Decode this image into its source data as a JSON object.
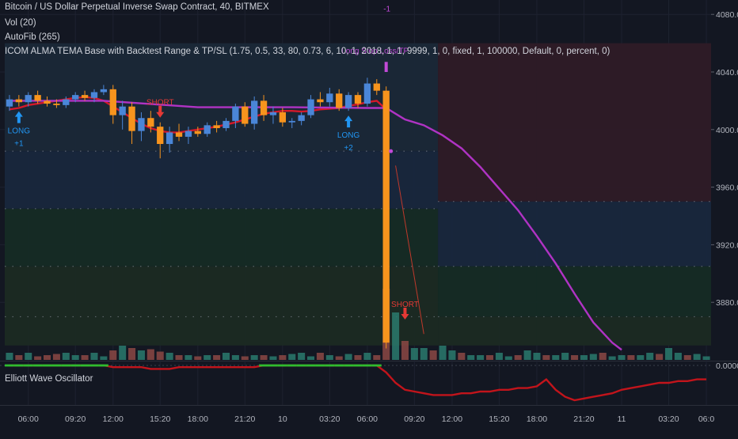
{
  "header": {
    "symbol_title": "Bitcoin / US Dollar Perpetual Inverse Swap Contract, 40, BITMEX",
    "vol_label": "Vol (20)",
    "autofib_label": "AutoFib (265)",
    "strategy_label": "ICOM ALMA TEMA Base with Backtest Range & TP/SL (1.75, 0.5, 33, 80, 0.73, 6, 10, 1, 2018, 1, 1, 9999, 1, 0, fixed, 1, 100000, Default, 0, percent, 0)"
  },
  "oscillator": {
    "title": "Elliott Wave Oscillator",
    "zero_label": "0.0000"
  },
  "colors": {
    "background": "#131722",
    "bull": "#4a86d8",
    "bear": "#f7941d",
    "ma_red": "#d3192a",
    "ma_magenta": "#b033c4",
    "signal_long": "#2196f3",
    "signal_short": "#e53935",
    "tp_label": "#c24ad8",
    "osc_line": "#c2141b",
    "osc_green": "#2ebd2e"
  },
  "chart_data": {
    "type": "candlestick",
    "title": "Bitcoin / US Dollar Perpetual Inverse Swap Contract, 40, BITMEX",
    "y_axis": {
      "range": [
        3840,
        4090
      ],
      "tick_labels": [
        "4080.0",
        "4040.0",
        "4000.0",
        "3960.0",
        "3920.0",
        "3880.0"
      ],
      "ticks": [
        4080,
        4040,
        4000,
        3960,
        3920,
        3880
      ]
    },
    "x_axis": {
      "tick_labels": [
        "06:00",
        "09:20",
        "12:00",
        "15:20",
        "18:00",
        "21:20",
        "10",
        "03:20",
        "06:00",
        "09:20",
        "12:00",
        "15:20",
        "18:00",
        "21:20",
        "11",
        "03:20",
        "06:0"
      ],
      "tick_bars": [
        2,
        7,
        11,
        16,
        20,
        25,
        29,
        34,
        38,
        43,
        47,
        52,
        56,
        61,
        65,
        70,
        74
      ]
    },
    "candles": [
      {
        "o": 4016,
        "h": 4024,
        "l": 4013,
        "c": 4021
      },
      {
        "o": 4021,
        "h": 4024,
        "l": 4016,
        "c": 4019
      },
      {
        "o": 4019,
        "h": 4026,
        "l": 4016,
        "c": 4024
      },
      {
        "o": 4024,
        "h": 4027,
        "l": 4018,
        "c": 4020
      },
      {
        "o": 4020,
        "h": 4023,
        "l": 4016,
        "c": 4018
      },
      {
        "o": 4018,
        "h": 4021,
        "l": 4015,
        "c": 4017
      },
      {
        "o": 4017,
        "h": 4023,
        "l": 4015,
        "c": 4021
      },
      {
        "o": 4021,
        "h": 4026,
        "l": 4019,
        "c": 4024
      },
      {
        "o": 4024,
        "h": 4027,
        "l": 4020,
        "c": 4022
      },
      {
        "o": 4022,
        "h": 4028,
        "l": 4019,
        "c": 4026
      },
      {
        "o": 4026,
        "h": 4031,
        "l": 4024,
        "c": 4028
      },
      {
        "o": 4028,
        "h": 4031,
        "l": 4004,
        "c": 4010
      },
      {
        "o": 4010,
        "h": 4020,
        "l": 4000,
        "c": 4016
      },
      {
        "o": 4016,
        "h": 4019,
        "l": 3990,
        "c": 3999
      },
      {
        "o": 3999,
        "h": 4012,
        "l": 3992,
        "c": 4008
      },
      {
        "o": 4008,
        "h": 4013,
        "l": 3998,
        "c": 4002
      },
      {
        "o": 4002,
        "h": 4005,
        "l": 3980,
        "c": 3990
      },
      {
        "o": 3990,
        "h": 4002,
        "l": 3984,
        "c": 3998
      },
      {
        "o": 3998,
        "h": 4004,
        "l": 3992,
        "c": 3995
      },
      {
        "o": 3995,
        "h": 4002,
        "l": 3990,
        "c": 3999
      },
      {
        "o": 3999,
        "h": 4002,
        "l": 3995,
        "c": 3997
      },
      {
        "o": 3997,
        "h": 4005,
        "l": 3995,
        "c": 4003
      },
      {
        "o": 4003,
        "h": 4006,
        "l": 3998,
        "c": 4001
      },
      {
        "o": 4001,
        "h": 4008,
        "l": 3999,
        "c": 4006
      },
      {
        "o": 4006,
        "h": 4018,
        "l": 4001,
        "c": 4016
      },
      {
        "o": 4016,
        "h": 4019,
        "l": 4002,
        "c": 4004
      },
      {
        "o": 4004,
        "h": 4023,
        "l": 4000,
        "c": 4020
      },
      {
        "o": 4020,
        "h": 4024,
        "l": 4006,
        "c": 4010
      },
      {
        "o": 4010,
        "h": 4016,
        "l": 4004,
        "c": 4012
      },
      {
        "o": 4012,
        "h": 4015,
        "l": 4002,
        "c": 4005
      },
      {
        "o": 4005,
        "h": 4008,
        "l": 4001,
        "c": 4006
      },
      {
        "o": 4006,
        "h": 4012,
        "l": 4003,
        "c": 4010
      },
      {
        "o": 4010,
        "h": 4024,
        "l": 4008,
        "c": 4021
      },
      {
        "o": 4021,
        "h": 4026,
        "l": 4016,
        "c": 4019
      },
      {
        "o": 4019,
        "h": 4029,
        "l": 4016,
        "c": 4025
      },
      {
        "o": 4025,
        "h": 4028,
        "l": 4013,
        "c": 4015
      },
      {
        "o": 4015,
        "h": 4026,
        "l": 4013,
        "c": 4024
      },
      {
        "o": 4024,
        "h": 4026,
        "l": 4015,
        "c": 4018
      },
      {
        "o": 4018,
        "h": 4036,
        "l": 4016,
        "c": 4032
      },
      {
        "o": 4032,
        "h": 4035,
        "l": 4024,
        "c": 4027
      },
      {
        "o": 4027,
        "h": 4030,
        "l": 3848,
        "c": 3852
      }
    ],
    "volume": [
      3,
      2,
      3,
      1.5,
      2,
      2.5,
      3,
      2,
      2,
      3,
      1.5,
      4,
      6,
      5,
      4,
      4.5,
      3.5,
      3,
      2,
      2,
      1.5,
      2,
      2,
      3,
      2,
      1.5,
      2,
      2,
      1.5,
      2,
      2.5,
      3,
      1.5,
      3,
      2,
      1.5,
      2.5,
      2,
      3,
      2,
      30,
      20,
      8,
      5,
      5,
      4,
      6,
      4,
      3,
      2,
      2,
      2,
      3,
      1.5,
      2,
      4,
      3,
      2,
      2,
      3,
      2,
      2,
      2.5,
      3,
      1.5,
      2,
      2,
      2,
      3,
      2.5,
      5,
      3,
      2,
      2.5,
      1.5
    ],
    "ma_red": [
      4014,
      4015,
      4017,
      4018,
      4019,
      4020,
      4021,
      4022,
      4022.5,
      4022,
      4020,
      4016,
      4012,
      4008,
      4004,
      4001,
      3999,
      3998,
      3998,
      3999,
      4000,
      4001,
      4002,
      4003.5,
      4005,
      4007,
      4009,
      4011,
      4012,
      4013,
      4013,
      4012.5,
      4013,
      4014,
      4014.5,
      4015,
      4016.5,
      4017.5,
      4019,
      4020,
      4014
    ],
    "ma_magenta_path": [
      [
        0,
        4020
      ],
      [
        10,
        4020
      ],
      [
        20,
        4015.5
      ],
      [
        30,
        4015.5
      ],
      [
        38,
        4015
      ],
      [
        40,
        4015
      ],
      [
        42,
        4007
      ],
      [
        44,
        4003
      ],
      [
        46,
        3996
      ],
      [
        48,
        3987
      ],
      [
        50,
        3974
      ],
      [
        52,
        3959
      ],
      [
        54,
        3944
      ],
      [
        56,
        3926
      ],
      [
        58,
        3907
      ],
      [
        60,
        3886
      ],
      [
        62,
        3866
      ],
      [
        64,
        3852
      ],
      [
        65,
        3847
      ]
    ],
    "fib_zones": [
      {
        "from": 4060,
        "to": 3985,
        "x0": 0,
        "x1": 45,
        "color": "#1a2838"
      },
      {
        "from": 4060,
        "to": 3950,
        "x0": 46,
        "x1": 75,
        "color": "#2e1b27"
      },
      {
        "from": 3985,
        "to": 3945,
        "x0": 0,
        "x1": 45,
        "color": "#18273d"
      },
      {
        "from": 3950,
        "to": 3905,
        "x0": 46,
        "x1": 75,
        "color": "#18273d"
      },
      {
        "from": 3945,
        "to": 3905,
        "x0": 0,
        "x1": 45,
        "color": "#152b25"
      },
      {
        "from": 3905,
        "to": 3870,
        "x0": 46,
        "x1": 75,
        "color": "#152b25"
      },
      {
        "from": 3905,
        "to": 3850,
        "x0": 0,
        "x1": 45,
        "color": "#1b2a23"
      },
      {
        "from": 3870,
        "to": 3850,
        "x0": 46,
        "x1": 75,
        "color": "#1b2a23"
      }
    ],
    "fib_dotted_levels": [
      {
        "value": 3985,
        "x0": 0,
        "x1": 45
      },
      {
        "value": 3945,
        "x0": 0,
        "x1": 45
      },
      {
        "value": 3905,
        "x0": 0,
        "x1": 45
      },
      {
        "value": 3870,
        "x0": 0,
        "x1": 45
      },
      {
        "value": 3950,
        "x0": 46,
        "x1": 75
      },
      {
        "value": 3905,
        "x0": 46,
        "x1": 75
      },
      {
        "value": 3870,
        "x0": 46,
        "x1": 75
      }
    ],
    "signals": [
      {
        "type": "long",
        "bar": 1,
        "label": "LONG",
        "count": "+1"
      },
      {
        "type": "short",
        "bar": 16,
        "label": "SHORT",
        "count": ""
      },
      {
        "type": "long",
        "bar": 36,
        "label": "LONG",
        "count": "+2"
      },
      {
        "type": "short",
        "bar": 42,
        "label": "SHORT",
        "count": ""
      }
    ],
    "tp_annotation": {
      "bar": 40,
      "label": "Long Stop Loss/TP",
      "marker": "-1"
    },
    "oscillator_line": [
      0,
      0,
      0,
      0,
      0,
      0,
      0,
      0,
      0,
      0,
      0,
      -1,
      -1,
      -1,
      -1,
      -2,
      -2,
      -2,
      -1,
      -1,
      -1,
      -1,
      -1,
      -1,
      -1,
      -1,
      -1,
      0,
      0,
      0,
      0,
      0,
      0,
      0,
      0,
      0,
      0,
      0,
      0,
      0,
      -4,
      -10,
      -14,
      -15,
      -16,
      -17,
      -17,
      -17,
      -16,
      -16,
      -15,
      -15,
      -14,
      -14,
      -13,
      -13,
      -12,
      -8,
      -14,
      -18,
      -20,
      -19,
      -18,
      -17,
      -16,
      -14,
      -13,
      -12,
      -11,
      -10,
      -10,
      -9,
      -9,
      -8,
      -8
    ]
  }
}
